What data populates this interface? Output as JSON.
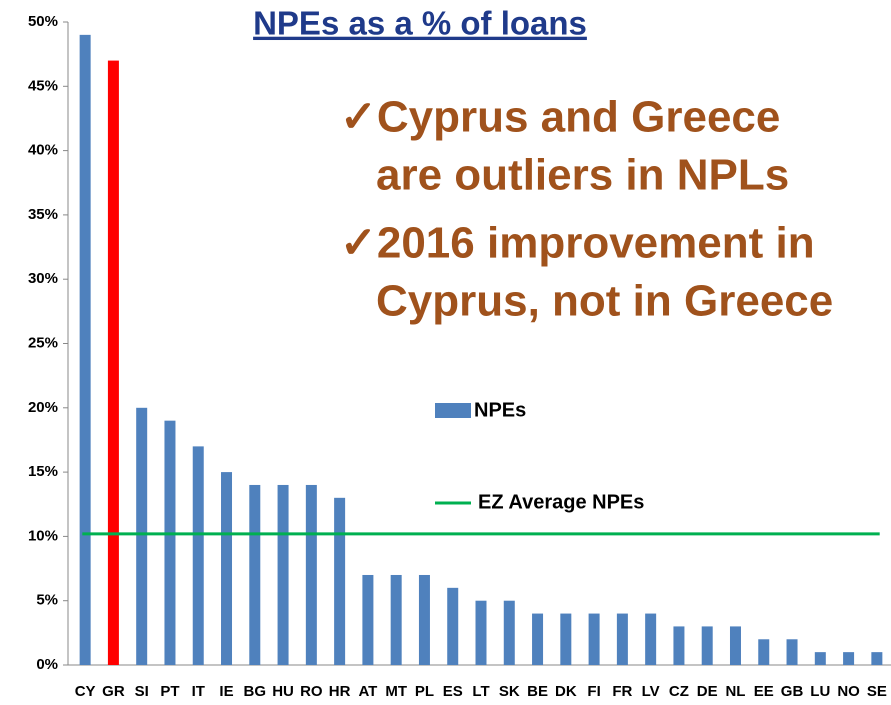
{
  "chart_data": {
    "type": "bar",
    "title": "NPEs as a % of loans",
    "categories": [
      "CY",
      "GR",
      "SI",
      "PT",
      "IT",
      "IE",
      "BG",
      "HU",
      "RO",
      "HR",
      "AT",
      "MT",
      "PL",
      "ES",
      "LT",
      "SK",
      "BE",
      "DK",
      "FI",
      "FR",
      "LV",
      "CZ",
      "DE",
      "NL",
      "EE",
      "GB",
      "LU",
      "NO",
      "SE"
    ],
    "series": [
      {
        "name": "NPEs",
        "color": "#4f81bd",
        "colors": [
          "#4f81bd",
          "#ff0000",
          "#4f81bd",
          "#4f81bd",
          "#4f81bd",
          "#4f81bd",
          "#4f81bd",
          "#4f81bd",
          "#4f81bd",
          "#4f81bd",
          "#4f81bd",
          "#4f81bd",
          "#4f81bd",
          "#4f81bd",
          "#4f81bd",
          "#4f81bd",
          "#4f81bd",
          "#4f81bd",
          "#4f81bd",
          "#4f81bd",
          "#4f81bd",
          "#4f81bd",
          "#4f81bd",
          "#4f81bd",
          "#4f81bd",
          "#4f81bd",
          "#4f81bd",
          "#4f81bd",
          "#4f81bd"
        ],
        "values": [
          49,
          47,
          20,
          19,
          17,
          15,
          14,
          14,
          14,
          13,
          7,
          7,
          7,
          6,
          5,
          5,
          4,
          4,
          4,
          4,
          4,
          3,
          3,
          3,
          2,
          2,
          1,
          1,
          1
        ]
      }
    ],
    "reference_line": {
      "name": "EZ Average NPEs",
      "color": "#00b050",
      "value": 10.2
    },
    "ylim": [
      0,
      50
    ],
    "yticks": [
      {
        "value": 0,
        "label": "0%"
      },
      {
        "value": 5,
        "label": "5%"
      },
      {
        "value": 10,
        "label": "10%"
      },
      {
        "value": 15,
        "label": "15%"
      },
      {
        "value": 20,
        "label": "20%"
      },
      {
        "value": 25,
        "label": "25%"
      },
      {
        "value": 30,
        "label": "30%"
      },
      {
        "value": 35,
        "label": "35%"
      },
      {
        "value": 40,
        "label": "40%"
      },
      {
        "value": 45,
        "label": "45%"
      },
      {
        "value": 50,
        "label": "50%"
      }
    ],
    "grid": false,
    "annotations": [
      "✓Cyprus and Greece",
      "are outliers in NPLs",
      "✓2016 improvement in",
      "Cyprus, not in Greece"
    ]
  }
}
